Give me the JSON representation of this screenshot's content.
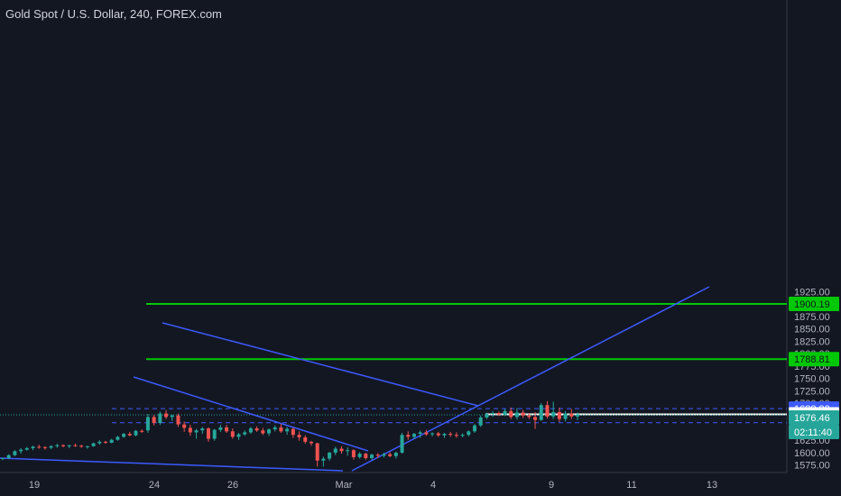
{
  "header": {
    "title": "Gold Spot / U.S. Dollar, 240, FOREX.com"
  },
  "colors": {
    "background": "#131722",
    "up": "#26a69a",
    "down": "#ef5350",
    "green_level": "#00c805",
    "blue_line": "#3d5afe",
    "axis_text": "#b2b5be"
  },
  "chart_data": {
    "type": "candlestick",
    "title": "Gold Spot / U.S. Dollar, 240, FOREX.com",
    "ylim": [
      1572,
      1940
    ],
    "y_ticks": [
      "1575.00",
      "1600.00",
      "1625.00",
      "1650.00",
      "1675.00",
      "1700.00",
      "1725.00",
      "1750.00",
      "1775.00",
      "1800.00",
      "1825.00",
      "1850.00",
      "1875.00",
      "1900.00",
      "1925.00"
    ],
    "x_ticks": [
      "19",
      "24",
      "26",
      "Mar",
      "4",
      "9",
      "11",
      "13"
    ],
    "levels": [
      {
        "value": 1900.19,
        "label": "1900.19",
        "style": "solid",
        "color": "#00c805"
      },
      {
        "value": 1788.81,
        "label": "1788.81",
        "style": "solid",
        "color": "#00c805"
      },
      {
        "value": 1688.82,
        "label": "1688.82",
        "style": "dashed",
        "color": "#3d5afe"
      },
      {
        "value": 1677.29,
        "label": "1677.29",
        "style": "solid",
        "color": "#ffffff"
      },
      {
        "value": 1660.5,
        "label": "",
        "style": "dashed",
        "color": "#3d5afe"
      }
    ],
    "price_tags": [
      {
        "value": 1676.46,
        "label": "1676.46",
        "color": "#26a69a"
      },
      {
        "value": 1660.0,
        "label": "02:11:40",
        "color": "#26a69a"
      }
    ],
    "candles": [
      [
        1588,
        1590,
        1585,
        1589
      ],
      [
        1589,
        1597,
        1587,
        1595
      ],
      [
        1595,
        1605,
        1593,
        1603
      ],
      [
        1603,
        1609,
        1598,
        1606
      ],
      [
        1606,
        1612,
        1604,
        1609
      ],
      [
        1609,
        1614,
        1605,
        1612
      ],
      [
        1612,
        1616,
        1608,
        1611
      ],
      [
        1611,
        1613,
        1606,
        1610
      ],
      [
        1610,
        1615,
        1607,
        1613
      ],
      [
        1613,
        1618,
        1610,
        1615
      ],
      [
        1615,
        1617,
        1611,
        1613
      ],
      [
        1613,
        1616,
        1609,
        1615
      ],
      [
        1615,
        1618,
        1612,
        1614
      ],
      [
        1614,
        1616,
        1610,
        1612
      ],
      [
        1612,
        1614,
        1608,
        1613
      ],
      [
        1613,
        1620,
        1612,
        1619
      ],
      [
        1619,
        1625,
        1616,
        1622
      ],
      [
        1622,
        1624,
        1618,
        1620
      ],
      [
        1620,
        1628,
        1619,
        1626
      ],
      [
        1626,
        1634,
        1624,
        1632
      ],
      [
        1632,
        1640,
        1630,
        1638
      ],
      [
        1638,
        1642,
        1633,
        1635
      ],
      [
        1635,
        1646,
        1633,
        1644
      ],
      [
        1644,
        1647,
        1640,
        1642
      ],
      [
        1645,
        1678,
        1640,
        1672
      ],
      [
        1672,
        1676,
        1655,
        1660
      ],
      [
        1660,
        1683,
        1656,
        1679
      ],
      [
        1679,
        1686,
        1668,
        1672
      ],
      [
        1672,
        1677,
        1664,
        1675
      ],
      [
        1675,
        1679,
        1652,
        1657
      ],
      [
        1657,
        1663,
        1642,
        1650
      ],
      [
        1650,
        1656,
        1634,
        1641
      ],
      [
        1641,
        1648,
        1628,
        1645
      ],
      [
        1645,
        1652,
        1638,
        1649
      ],
      [
        1649,
        1651,
        1622,
        1628
      ],
      [
        1628,
        1648,
        1624,
        1646
      ],
      [
        1646,
        1656,
        1642,
        1651
      ],
      [
        1651,
        1656,
        1640,
        1643
      ],
      [
        1643,
        1649,
        1628,
        1632
      ],
      [
        1632,
        1640,
        1626,
        1637
      ],
      [
        1637,
        1645,
        1634,
        1641
      ],
      [
        1641,
        1652,
        1638,
        1649
      ],
      [
        1649,
        1653,
        1642,
        1645
      ],
      [
        1645,
        1650,
        1636,
        1639
      ],
      [
        1639,
        1649,
        1634,
        1647
      ],
      [
        1647,
        1655,
        1643,
        1651
      ],
      [
        1651,
        1658,
        1640,
        1643
      ],
      [
        1643,
        1652,
        1636,
        1648
      ],
      [
        1648,
        1650,
        1630,
        1636
      ],
      [
        1636,
        1643,
        1624,
        1631
      ],
      [
        1631,
        1635,
        1618,
        1622
      ],
      [
        1622,
        1624,
        1614,
        1619
      ],
      [
        1619,
        1620,
        1572,
        1584
      ],
      [
        1584,
        1592,
        1572,
        1588
      ],
      [
        1588,
        1602,
        1584,
        1600
      ],
      [
        1600,
        1612,
        1595,
        1608
      ],
      [
        1608,
        1613,
        1598,
        1603
      ],
      [
        1603,
        1611,
        1594,
        1605
      ],
      [
        1605,
        1607,
        1586,
        1591
      ],
      [
        1591,
        1601,
        1588,
        1598
      ],
      [
        1598,
        1600,
        1586,
        1589
      ],
      [
        1589,
        1598,
        1586,
        1596
      ],
      [
        1596,
        1599,
        1589,
        1594
      ],
      [
        1594,
        1600,
        1590,
        1597
      ],
      [
        1597,
        1601,
        1591,
        1593
      ],
      [
        1593,
        1602,
        1588,
        1600
      ],
      [
        1600,
        1640,
        1598,
        1636
      ],
      [
        1636,
        1643,
        1626,
        1632
      ],
      [
        1632,
        1640,
        1628,
        1638
      ],
      [
        1638,
        1645,
        1630,
        1641
      ],
      [
        1641,
        1646,
        1634,
        1637
      ],
      [
        1637,
        1641,
        1633,
        1639
      ],
      [
        1639,
        1642,
        1632,
        1635
      ],
      [
        1635,
        1640,
        1630,
        1638
      ],
      [
        1638,
        1642,
        1632,
        1636
      ],
      [
        1636,
        1641,
        1630,
        1634
      ],
      [
        1634,
        1639,
        1631,
        1636
      ],
      [
        1636,
        1645,
        1633,
        1643
      ],
      [
        1643,
        1658,
        1640,
        1655
      ],
      [
        1655,
        1675,
        1652,
        1671
      ],
      [
        1671,
        1681,
        1668,
        1678
      ],
      [
        1678,
        1684,
        1672,
        1680
      ],
      [
        1680,
        1683,
        1674,
        1677
      ],
      [
        1677,
        1688,
        1674,
        1684
      ],
      [
        1684,
        1691,
        1668,
        1672
      ],
      [
        1672,
        1690,
        1667,
        1681
      ],
      [
        1681,
        1686,
        1670,
        1675
      ],
      [
        1675,
        1680,
        1668,
        1672
      ],
      [
        1672,
        1682,
        1648,
        1666
      ],
      [
        1666,
        1700,
        1664,
        1696
      ],
      [
        1696,
        1704,
        1669,
        1673
      ],
      [
        1673,
        1703,
        1668,
        1682
      ],
      [
        1682,
        1691,
        1662,
        1668
      ],
      [
        1668,
        1684,
        1663,
        1679
      ],
      [
        1679,
        1688,
        1668,
        1673
      ],
      [
        1673,
        1681,
        1666,
        1677
      ]
    ]
  }
}
